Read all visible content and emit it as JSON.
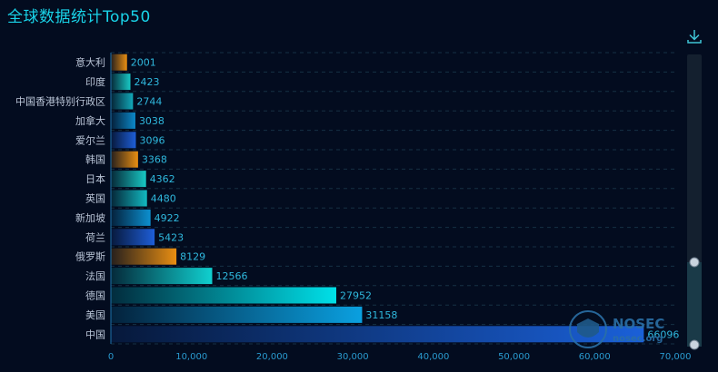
{
  "chart_data": {
    "type": "bar",
    "orientation": "horizontal",
    "title": "全球数据统计Top50",
    "categories": [
      "意大利",
      "印度",
      "中国香港特别行政区",
      "加拿大",
      "爱尔兰",
      "韩国",
      "日本",
      "英国",
      "新加坡",
      "荷兰",
      "俄罗斯",
      "法国",
      "德国",
      "美国",
      "中国"
    ],
    "values": [
      2001,
      2423,
      2744,
      3038,
      3096,
      3368,
      4362,
      4480,
      4922,
      5423,
      8129,
      12566,
      27952,
      31158,
      66096
    ],
    "xlim": [
      0,
      70000
    ],
    "xticks": [
      "0",
      "10,000",
      "20,000",
      "30,000",
      "40,000",
      "50,000",
      "60,000",
      "70,000"
    ],
    "grid": true
  },
  "bar_colors": [
    "#e88e12",
    "#18c8c4",
    "#12a8b8",
    "#0c88c8",
    "#1e5ed8",
    "#e88e12",
    "#18c8c4",
    "#12b8c0",
    "#0c90d0",
    "#1e5ed8",
    "#e88e12",
    "#10d0d0",
    "#00e0e8",
    "#0aa0e0",
    "#1a60d8"
  ],
  "toolbar": {
    "download_icon": "download-icon"
  },
  "watermark": {
    "name": "NOSEC",
    "domain": "nosec.org"
  }
}
